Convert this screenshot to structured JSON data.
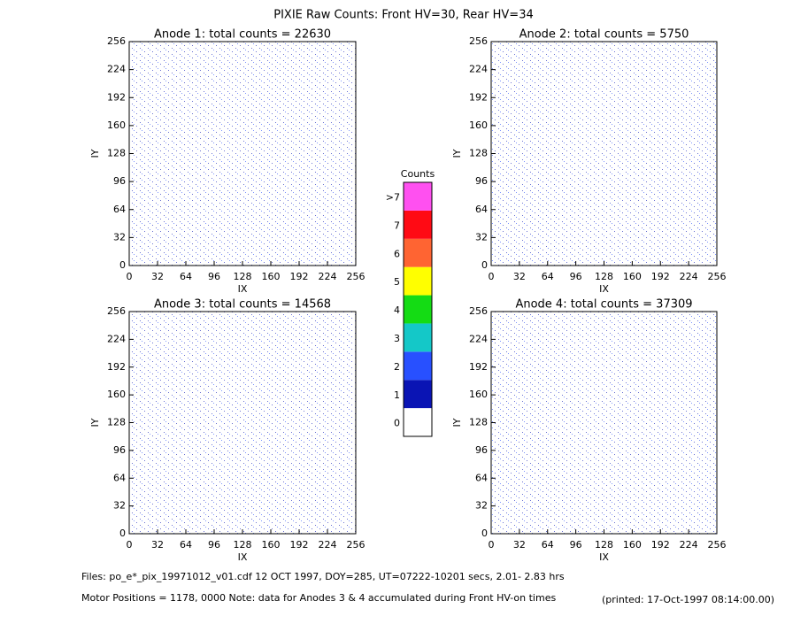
{
  "title": "PIXIE Raw Counts:  Front HV=30, Rear HV=34",
  "chart_data": [
    {
      "type": "heatmap",
      "title": "Anode 1: total counts = 22630",
      "xlabel": "IX",
      "ylabel": "IY",
      "xlim": [
        0,
        256
      ],
      "ylim": [
        0,
        256
      ],
      "xticks": [
        0,
        32,
        64,
        96,
        128,
        160,
        192,
        224,
        256
      ],
      "yticks": [
        0,
        32,
        64,
        96,
        128,
        160,
        192,
        224,
        256
      ]
    },
    {
      "type": "heatmap",
      "title": "Anode 2: total counts = 5750",
      "xlabel": "IX",
      "ylabel": "IY",
      "xlim": [
        0,
        256
      ],
      "ylim": [
        0,
        256
      ],
      "xticks": [
        0,
        32,
        64,
        96,
        128,
        160,
        192,
        224,
        256
      ],
      "yticks": [
        0,
        32,
        64,
        96,
        128,
        160,
        192,
        224,
        256
      ]
    },
    {
      "type": "heatmap",
      "title": "Anode 3: total counts = 14568",
      "xlabel": "IX",
      "ylabel": "IY",
      "xlim": [
        0,
        256
      ],
      "ylim": [
        0,
        256
      ],
      "xticks": [
        0,
        32,
        64,
        96,
        128,
        160,
        192,
        224,
        256
      ],
      "yticks": [
        0,
        32,
        64,
        96,
        128,
        160,
        192,
        224,
        256
      ]
    },
    {
      "type": "heatmap",
      "title": "Anode 4: total counts = 37309",
      "xlabel": "IX",
      "ylabel": "IY",
      "xlim": [
        0,
        256
      ],
      "ylim": [
        0,
        256
      ],
      "xticks": [
        0,
        32,
        64,
        96,
        128,
        160,
        192,
        224,
        256
      ],
      "yticks": [
        0,
        32,
        64,
        96,
        128,
        160,
        192,
        224,
        256
      ]
    }
  ],
  "colorbar": {
    "title": "Counts",
    "labels": [
      "0",
      "1",
      "2",
      "3",
      "4",
      "5",
      "6",
      "7",
      ">7"
    ],
    "colors": [
      "#ffffff",
      "#0a14b4",
      "#2850ff",
      "#14c8c8",
      "#14dc14",
      "#ffff00",
      "#ff6432",
      "#ff0a14",
      "#ff50f0"
    ]
  },
  "footer": {
    "files": "Files: po_e*_pix_19971012_v01.cdf    12 OCT 1997, DOY=285, UT=07222-10201 secs,  2.01- 2.83 hrs",
    "motor": "Motor Positions = 1178, 0000   Note: data for Anodes 3 & 4 accumulated during Front HV-on times",
    "printed": "(printed: 17-Oct-1997 08:14:00.00)"
  }
}
